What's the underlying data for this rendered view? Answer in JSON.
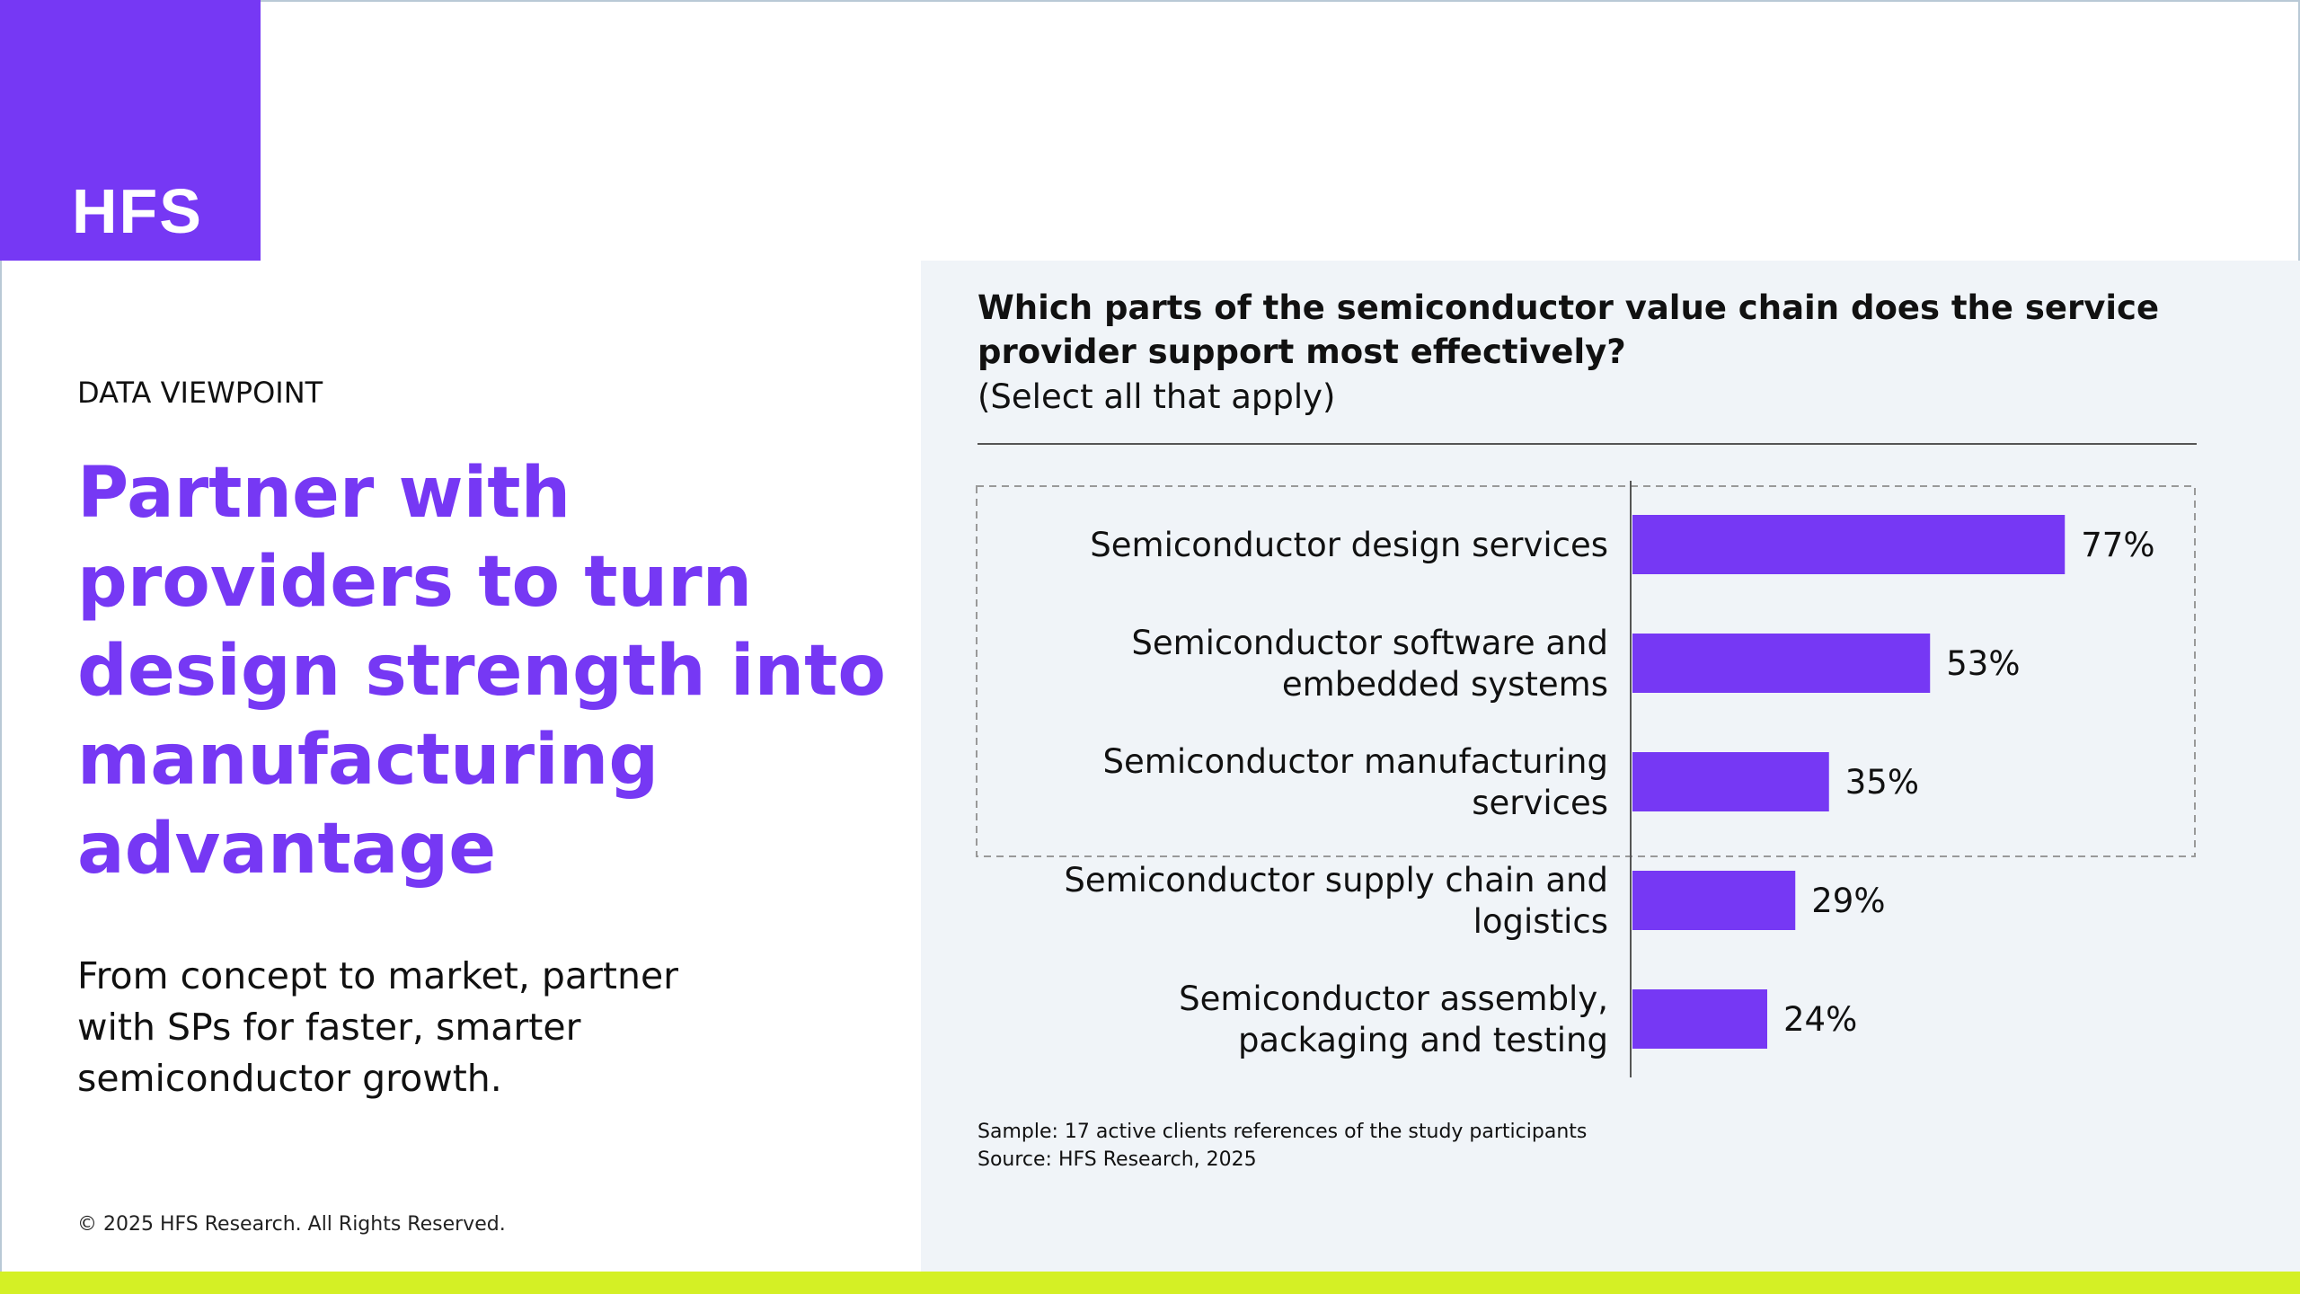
{
  "brand": {
    "logo_text": "HFS",
    "accent_color": "#7638f4",
    "band_color": "#d4f025"
  },
  "left": {
    "eyebrow": "DATA VIEWPOINT",
    "headline_lines": [
      "Partner with",
      "providers to turn",
      "design strength into",
      "manufacturing",
      "advantage"
    ],
    "subcopy_lines": [
      "From concept to market, partner",
      "with SPs for faster, smarter",
      "semiconductor growth."
    ],
    "copyright": "© 2025 HFS Research. All Rights Reserved."
  },
  "question": {
    "lines": [
      "Which parts of the semiconductor value chain does the service",
      "provider support most effectively?"
    ],
    "note": "(Select all that apply)"
  },
  "chart_data": {
    "type": "bar",
    "orientation": "horizontal",
    "categories": [
      [
        "Semiconductor design services"
      ],
      [
        "Semiconductor software and",
        "embedded systems"
      ],
      [
        "Semiconductor manufacturing",
        "services"
      ],
      [
        "Semiconductor supply chain and",
        "logistics"
      ],
      [
        "Semiconductor assembly,",
        "packaging and testing"
      ]
    ],
    "values": [
      77,
      53,
      35,
      29,
      24
    ],
    "value_labels": [
      "77%",
      "53%",
      "35%",
      "29%",
      "24%"
    ],
    "xlim": [
      0,
      100
    ],
    "bar_color": "#7638f4",
    "highlight_top_n": 3,
    "grid": false,
    "legend": "none"
  },
  "footnotes": {
    "sample": "Sample: 17 active clients references of the study participants",
    "source": "Source: HFS Research, 2025"
  }
}
